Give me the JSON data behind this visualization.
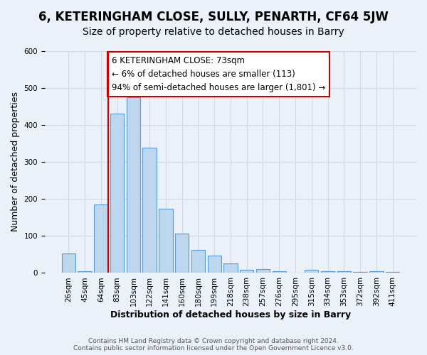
{
  "title": "6, KETERINGHAM CLOSE, SULLY, PENARTH, CF64 5JW",
  "subtitle": "Size of property relative to detached houses in Barry",
  "xlabel": "Distribution of detached houses by size in Barry",
  "ylabel": "Number of detached properties",
  "bin_labels": [
    "26sqm",
    "45sqm",
    "64sqm",
    "83sqm",
    "103sqm",
    "122sqm",
    "141sqm",
    "160sqm",
    "180sqm",
    "199sqm",
    "218sqm",
    "238sqm",
    "257sqm",
    "276sqm",
    "295sqm",
    "315sqm",
    "334sqm",
    "353sqm",
    "372sqm",
    "392sqm",
    "411sqm"
  ],
  "bar_values": [
    53,
    5,
    185,
    430,
    475,
    338,
    173,
    107,
    62,
    47,
    25,
    9,
    11,
    4,
    1,
    9,
    4,
    5,
    3,
    4,
    2
  ],
  "bar_color": "#bdd7ee",
  "bar_edge_color": "#5b9bd5",
  "grid_color": "#d0d8e4",
  "background_color": "#eaf1f8",
  "vline_color": "#cc0000",
  "annotation_title": "6 KETERINGHAM CLOSE: 73sqm",
  "annotation_line1": "← 6% of detached houses are smaller (113)",
  "annotation_line2": "94% of semi-detached houses are larger (1,801) →",
  "annotation_box_color": "#ffffff",
  "annotation_box_edge": "#cc0000",
  "footer_line1": "Contains HM Land Registry data © Crown copyright and database right 2024.",
  "footer_line2": "Contains public sector information licensed under the Open Government Licence v3.0.",
  "ylim": [
    0,
    600
  ],
  "title_fontsize": 12,
  "subtitle_fontsize": 10,
  "axis_label_fontsize": 9,
  "tick_fontsize": 7.5,
  "annotation_fontsize": 8.5,
  "footer_fontsize": 6.5
}
